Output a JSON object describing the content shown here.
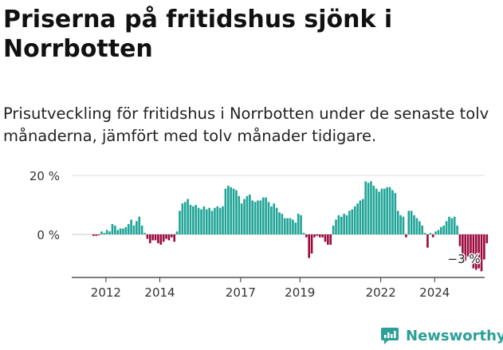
{
  "title": "Priserna på fritidshus sjönk i Norrbotten",
  "subtitle": "Prisutveckling för fritidshus i Norrbotten under de senaste tolv månaderna, jämfört med tolv månader tidigare.",
  "brand": {
    "name": "Newsworthy",
    "icon": "newsworthy-logo-icon"
  },
  "colors": {
    "positive": "#1fa497",
    "negative": "#9b0a3e",
    "grid": "#dddddd",
    "axis": "#333333"
  },
  "chart_data": {
    "type": "bar",
    "ylabel": "",
    "xlabel": "",
    "ylim": [
      -15,
      22
    ],
    "y_ticks": [
      {
        "value": 20,
        "label": "20 %"
      },
      {
        "value": 0,
        "label": "0 %"
      }
    ],
    "x_ticks": [
      "2012",
      "2014",
      "2017",
      "2019",
      "2022",
      "2024"
    ],
    "x_tick_index": [
      5,
      25,
      55,
      77,
      107,
      127
    ],
    "annotation": {
      "label": "−3 %",
      "index": 133
    },
    "values": [
      -0.5,
      -0.5,
      -0.3,
      1,
      0.5,
      1.5,
      1,
      3.5,
      3,
      1.5,
      2,
      2,
      2.5,
      3.5,
      5,
      3,
      4.5,
      6,
      3,
      0.5,
      -1.5,
      -3,
      -2,
      -2,
      -3,
      -3.5,
      -2.5,
      -1.5,
      -2,
      -1,
      -2.5,
      1,
      8,
      10.5,
      11,
      12,
      10,
      9.5,
      10,
      9,
      8.5,
      9.5,
      8.5,
      9,
      8,
      9,
      9.5,
      9,
      9.5,
      15.5,
      16.5,
      16,
      15.5,
      15,
      13,
      10.5,
      12,
      13,
      13.5,
      11.5,
      11,
      11.5,
      11.5,
      12.5,
      12.5,
      11,
      9.5,
      10.5,
      9,
      7.5,
      7,
      5.5,
      5.5,
      5.5,
      5,
      4,
      7,
      6.5,
      0.5,
      -1,
      -8,
      -6.5,
      -1,
      -0.5,
      -1,
      -1,
      -2.5,
      -3.5,
      -3.5,
      3,
      5,
      6.5,
      6,
      7,
      6.5,
      8,
      8.5,
      9.5,
      10.5,
      11.5,
      12,
      18,
      17.5,
      18,
      16.5,
      15.5,
      14.5,
      15.5,
      15.5,
      16,
      16,
      15,
      14,
      8,
      6.5,
      6,
      -1,
      8,
      8,
      6.5,
      5.5,
      4.5,
      3,
      0.5,
      -4.5,
      0.5,
      -1,
      1,
      1.5,
      2.5,
      3,
      4.5,
      6,
      5.5,
      6,
      3,
      -4,
      -9.5,
      -9,
      -7.5,
      -8.5,
      -11.5,
      -12,
      -11.5,
      -12.5,
      -8.5,
      -3
    ]
  }
}
